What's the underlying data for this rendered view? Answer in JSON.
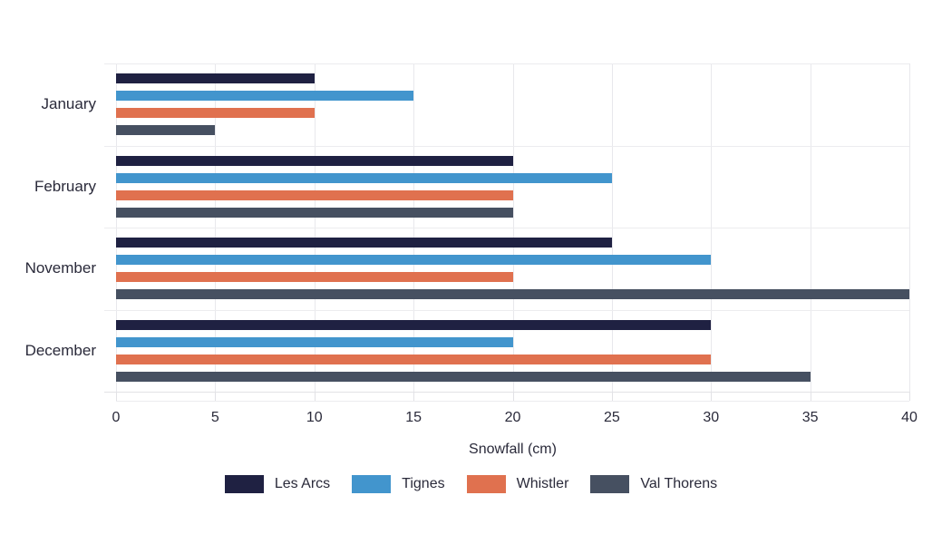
{
  "chart_data": {
    "type": "bar",
    "orientation": "horizontal",
    "xlabel": "Snowfall (cm)",
    "categories": [
      "January",
      "February",
      "November",
      "December"
    ],
    "series": [
      {
        "name": "Les Arcs",
        "color": "#1f2142",
        "values": [
          10,
          20,
          25,
          30
        ]
      },
      {
        "name": "Tignes",
        "color": "#4295cd",
        "values": [
          15,
          25,
          30,
          20
        ]
      },
      {
        "name": "Whistler",
        "color": "#e0714f",
        "values": [
          10,
          20,
          20,
          30
        ]
      },
      {
        "name": "Val Thorens",
        "color": "#465061",
        "values": [
          5,
          20,
          40,
          35
        ]
      }
    ],
    "xlim": [
      0,
      40
    ],
    "xticks": [
      0,
      5,
      10,
      15,
      20,
      25,
      30,
      35,
      40
    ],
    "grid": true,
    "legend_position": "bottom",
    "colors": {
      "text": "#2a2a3a",
      "gridline": "#e8e8ec",
      "background": "#ffffff"
    }
  }
}
